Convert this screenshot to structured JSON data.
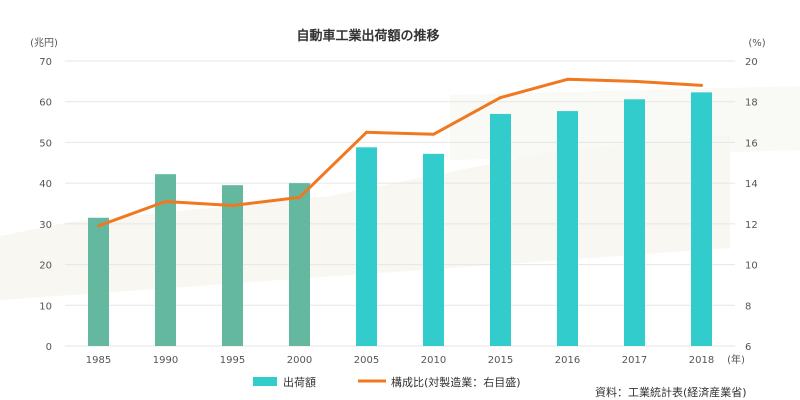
{
  "chart_data": {
    "type": "bar",
    "title": "自動車工業出荷額の推移",
    "categories": [
      "1985",
      "1990",
      "1995",
      "2000",
      "2005",
      "2010",
      "2015",
      "2016",
      "2017",
      "2018"
    ],
    "series": [
      {
        "name": "出荷額",
        "type": "bar",
        "axis": "left",
        "values": [
          31.5,
          42.2,
          39.5,
          40.0,
          48.8,
          47.2,
          57.0,
          57.7,
          60.6,
          62.3
        ]
      },
      {
        "name": "構成比(対製造業：右目盛)",
        "type": "line",
        "axis": "right",
        "values": [
          11.9,
          13.1,
          12.9,
          13.3,
          16.5,
          16.4,
          18.2,
          19.1,
          19.0,
          18.8
        ]
      }
    ],
    "left_axis": {
      "unit_label": "(兆円)",
      "range": [
        0,
        70
      ],
      "ticks": [
        "0",
        "10",
        "20",
        "30",
        "40",
        "50",
        "60",
        "70"
      ]
    },
    "right_axis": {
      "unit_label": "(%)",
      "range": [
        6,
        20
      ],
      "ticks": [
        "6",
        "8",
        "10",
        "12",
        "14",
        "16",
        "18",
        "20"
      ]
    },
    "x_unit_label": "(年)",
    "grid": true,
    "legend_position": "bottom",
    "colors": {
      "bar_early": "#64b89f",
      "bar": "#33cccc",
      "line": "#f07820",
      "grid": "#e6e6e6"
    },
    "source": "資料：工業統計表(経済産業省)"
  }
}
